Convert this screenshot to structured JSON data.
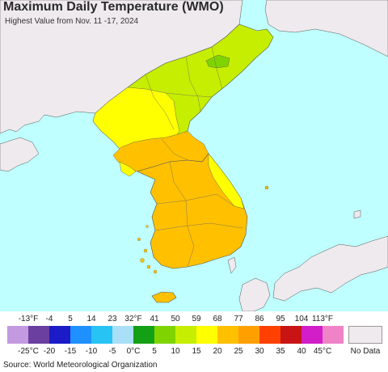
{
  "header": {
    "title": "Maximum Daily Temperature (WMO)",
    "subtitle": "Highest Value from Nov. 11 -17, 2024"
  },
  "legend": {
    "fahrenheit_labels": [
      "-13°F",
      "-4",
      "5",
      "14",
      "23",
      "32°F",
      "41",
      "50",
      "59",
      "68",
      "77",
      "86",
      "95",
      "104",
      "113°F"
    ],
    "celsius_labels": [
      "-25°C",
      "-20",
      "-15",
      "-10",
      "-5",
      "0°C",
      "5",
      "10",
      "15",
      "20",
      "25",
      "30",
      "35",
      "40",
      "45°C"
    ],
    "swatch_colors": [
      "#c39ae0",
      "#6a3fa0",
      "#1b1bc8",
      "#1e90ff",
      "#28c3f5",
      "#a9dff7",
      "#14a014",
      "#7fd400",
      "#c6ee00",
      "#ffff00",
      "#ffc000",
      "#ffa000",
      "#ff4000",
      "#c81414",
      "#d21ec8",
      "#f082c8"
    ],
    "no_data_label": "No Data",
    "no_data_color": "#eeeaee"
  },
  "map": {
    "region": "Korean Peninsula",
    "colors": {
      "ocean": "#bfffff",
      "outside_land": "#eeeaee",
      "temp_10_15": "#c6ee00",
      "temp_5_10": "#7fd400",
      "temp_15_20": "#ffff00",
      "temp_20_25": "#ffc000"
    }
  },
  "footer": {
    "source": "Source: World Meteorological Organization"
  }
}
